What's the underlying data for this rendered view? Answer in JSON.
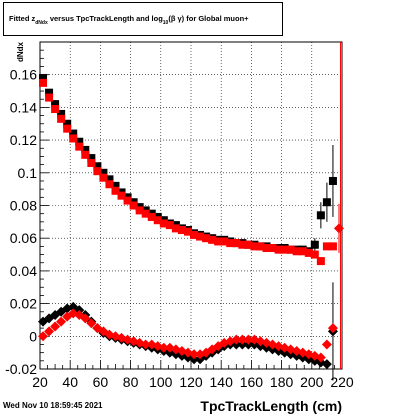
{
  "title": {
    "pre": "Fitted  z",
    "sub": "dNdx",
    "mid": " versus TpcTrackLength and log",
    "logsub": "10",
    "post": "(β  γ) for Global muon+"
  },
  "datestamp": "Wed Nov 10 18:59:45 2021",
  "chart_data": {
    "type": "scatter",
    "title": "Fitted z_dNdx versus TpcTrackLength and log10(β γ) for Global muon+",
    "xlabel": "TpcTrackLength (cm)",
    "ylabel": "dNdx",
    "xlim": [
      20,
      220
    ],
    "ylim": [
      -0.02,
      0.18
    ],
    "xticks": [
      20,
      40,
      60,
      80,
      100,
      120,
      140,
      160,
      180,
      200,
      220
    ],
    "yticks": [
      -0.02,
      0,
      0.02,
      0.04,
      0.06,
      0.08,
      0.1,
      0.12,
      0.14,
      0.16
    ],
    "ytick_labels": [
      "-0.02",
      "0",
      "0.02",
      "0.04",
      "0.06",
      "0.08",
      "0.1",
      "0.12",
      "0.14",
      "0.16"
    ],
    "grid": true,
    "series": [
      {
        "color": "#000000",
        "marker": "square",
        "x": [
          22,
          26,
          30,
          34,
          38,
          42,
          46,
          50,
          54,
          58,
          62,
          66,
          70,
          74,
          78,
          82,
          86,
          90,
          94,
          98,
          102,
          106,
          110,
          114,
          118,
          122,
          126,
          130,
          134,
          138,
          142,
          146,
          150,
          154,
          158,
          162,
          166,
          170,
          174,
          178,
          182,
          186,
          190,
          194,
          198,
          202,
          206,
          210,
          214
        ],
        "y": [
          0.158,
          0.149,
          0.142,
          0.136,
          0.13,
          0.124,
          0.119,
          0.114,
          0.109,
          0.104,
          0.1,
          0.096,
          0.092,
          0.088,
          0.085,
          0.082,
          0.079,
          0.077,
          0.075,
          0.073,
          0.071,
          0.069,
          0.068,
          0.066,
          0.065,
          0.063,
          0.062,
          0.061,
          0.06,
          0.059,
          0.059,
          0.058,
          0.057,
          0.057,
          0.056,
          0.056,
          0.055,
          0.055,
          0.054,
          0.054,
          0.054,
          0.053,
          0.053,
          0.053,
          0.052,
          0.056,
          0.074,
          0.082,
          0.095
        ],
        "err": [
          0,
          0,
          0,
          0,
          0,
          0,
          0,
          0,
          0,
          0,
          0,
          0,
          0,
          0,
          0,
          0,
          0,
          0,
          0,
          0,
          0,
          0,
          0,
          0,
          0,
          0,
          0,
          0,
          0,
          0,
          0,
          0,
          0,
          0,
          0,
          0,
          0,
          0,
          0,
          0,
          0,
          0,
          0,
          0,
          0,
          0.004,
          0.008,
          0.012,
          0.022
        ]
      },
      {
        "color": "#ff0000",
        "marker": "square",
        "x": [
          22,
          26,
          30,
          34,
          38,
          42,
          46,
          50,
          54,
          58,
          62,
          66,
          70,
          74,
          78,
          82,
          86,
          90,
          94,
          98,
          102,
          106,
          110,
          114,
          118,
          122,
          126,
          130,
          134,
          138,
          142,
          146,
          150,
          154,
          158,
          162,
          166,
          170,
          174,
          178,
          182,
          186,
          190,
          194,
          198,
          202,
          206,
          210,
          214
        ],
        "y": [
          0.155,
          0.146,
          0.139,
          0.133,
          0.127,
          0.121,
          0.116,
          0.111,
          0.106,
          0.101,
          0.097,
          0.093,
          0.089,
          0.086,
          0.083,
          0.08,
          0.077,
          0.075,
          0.073,
          0.071,
          0.069,
          0.068,
          0.066,
          0.065,
          0.064,
          0.062,
          0.061,
          0.06,
          0.059,
          0.058,
          0.058,
          0.057,
          0.057,
          0.056,
          0.056,
          0.055,
          0.055,
          0.054,
          0.054,
          0.053,
          0.053,
          0.053,
          0.052,
          0.052,
          0.051,
          0.05,
          0.046,
          0.055,
          0.055
        ],
        "err": [
          0,
          0,
          0,
          0,
          0,
          0,
          0,
          0,
          0,
          0,
          0,
          0,
          0,
          0,
          0,
          0,
          0,
          0,
          0,
          0,
          0,
          0,
          0,
          0,
          0,
          0,
          0,
          0,
          0,
          0,
          0,
          0,
          0,
          0,
          0,
          0,
          0,
          0,
          0,
          0,
          0,
          0,
          0,
          0,
          0,
          0,
          0,
          0,
          0
        ]
      },
      {
        "color": "#000000",
        "marker": "diamond",
        "x": [
          22,
          26,
          30,
          34,
          38,
          42,
          46,
          50,
          54,
          58,
          62,
          66,
          70,
          74,
          78,
          82,
          86,
          90,
          94,
          98,
          102,
          106,
          110,
          114,
          118,
          122,
          126,
          130,
          134,
          138,
          142,
          146,
          150,
          154,
          158,
          162,
          166,
          170,
          174,
          178,
          182,
          186,
          190,
          194,
          198,
          202,
          206,
          210,
          214
        ],
        "y": [
          0.009,
          0.011,
          0.013,
          0.015,
          0.017,
          0.018,
          0.016,
          0.013,
          0.009,
          0.005,
          0.002,
          0.0,
          -0.001,
          -0.002,
          -0.003,
          -0.004,
          -0.005,
          -0.006,
          -0.007,
          -0.008,
          -0.009,
          -0.01,
          -0.011,
          -0.012,
          -0.013,
          -0.014,
          -0.014,
          -0.012,
          -0.01,
          -0.008,
          -0.006,
          -0.005,
          -0.005,
          -0.005,
          -0.005,
          -0.005,
          -0.006,
          -0.007,
          -0.008,
          -0.009,
          -0.01,
          -0.011,
          -0.012,
          -0.013,
          -0.014,
          -0.015,
          -0.016,
          -0.017,
          0.003
        ],
        "err": [
          0,
          0,
          0,
          0,
          0,
          0,
          0,
          0,
          0,
          0,
          0,
          0,
          0,
          0,
          0,
          0,
          0,
          0,
          0,
          0,
          0,
          0,
          0,
          0,
          0,
          0,
          0,
          0,
          0,
          0,
          0,
          0,
          0,
          0,
          0,
          0,
          0,
          0,
          0,
          0,
          0,
          0,
          0,
          0,
          0,
          0,
          0,
          0,
          0.03
        ]
      },
      {
        "color": "#ff0000",
        "marker": "diamond",
        "x": [
          22,
          26,
          30,
          34,
          38,
          42,
          46,
          50,
          54,
          58,
          62,
          66,
          70,
          74,
          78,
          82,
          86,
          90,
          94,
          98,
          102,
          106,
          110,
          114,
          118,
          122,
          126,
          130,
          134,
          138,
          142,
          146,
          150,
          154,
          158,
          162,
          166,
          170,
          174,
          178,
          182,
          186,
          190,
          194,
          198,
          202,
          206,
          210,
          214,
          218
        ],
        "y": [
          0.0,
          0.003,
          0.006,
          0.009,
          0.012,
          0.014,
          0.013,
          0.011,
          0.008,
          0.005,
          0.003,
          0.001,
          0.0,
          -0.001,
          -0.002,
          -0.003,
          -0.004,
          -0.005,
          -0.005,
          -0.006,
          -0.007,
          -0.007,
          -0.008,
          -0.009,
          -0.01,
          -0.011,
          -0.011,
          -0.01,
          -0.008,
          -0.006,
          -0.004,
          -0.003,
          -0.002,
          -0.002,
          -0.002,
          -0.002,
          -0.003,
          -0.004,
          -0.005,
          -0.006,
          -0.007,
          -0.008,
          -0.009,
          -0.01,
          -0.011,
          -0.012,
          -0.013,
          -0.005,
          0.005,
          0.066
        ],
        "err": [
          0,
          0,
          0,
          0,
          0,
          0,
          0,
          0,
          0,
          0,
          0,
          0,
          0,
          0,
          0,
          0,
          0,
          0,
          0,
          0,
          0,
          0,
          0,
          0,
          0,
          0,
          0,
          0,
          0,
          0,
          0,
          0,
          0,
          0,
          0,
          0,
          0,
          0,
          0,
          0,
          0,
          0,
          0,
          0,
          0,
          0,
          0,
          0,
          0,
          0.015
        ]
      }
    ]
  }
}
